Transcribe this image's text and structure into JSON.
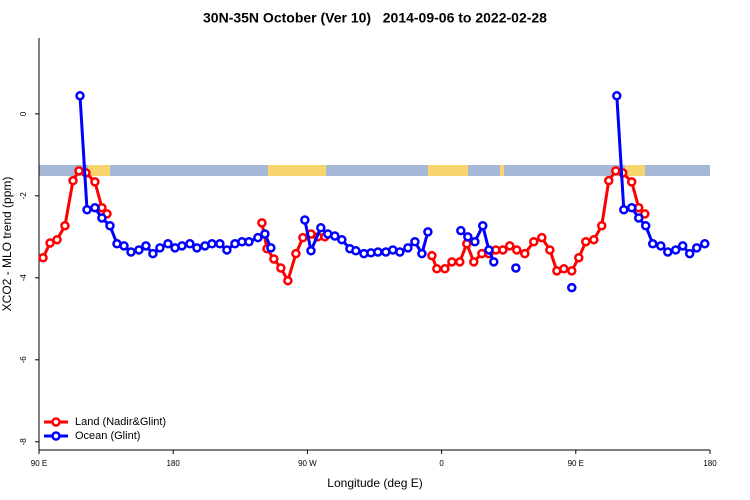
{
  "chart_data": {
    "type": "line",
    "title": "30N-35N October (Ver 10)   2014-09-06 to 2022-02-28",
    "x_label": "Longitude (deg E)",
    "y_label": "XCO2 - MLO trend (ppm)",
    "xlim": [
      90,
      540
    ],
    "ylim": [
      -8.2,
      1.85
    ],
    "xticks": [
      {
        "value": 90,
        "label": "90 E"
      },
      {
        "value": 180,
        "label": "180"
      },
      {
        "value": 270,
        "label": "90 W"
      },
      {
        "value": 360,
        "label": "0"
      },
      {
        "value": 450,
        "label": "90 E"
      },
      {
        "value": 540,
        "label": "180"
      }
    ],
    "yticks": [
      0,
      -2,
      -4,
      -6,
      -8
    ],
    "legend": "bottom-left",
    "series": [
      {
        "name": "Land (Nadir&Glint)",
        "color": "#ff0000",
        "x": [
          92.7,
          97.4,
          102.1,
          107.4,
          112.8,
          116.8,
          121.5,
          127.5,
          132.2,
          135.6,
          null,
          239.5,
          242.9,
          247.5,
          252.2,
          256.9,
          262.3,
          267.0,
          272.4,
          277.0,
          281.7,
          null,
          353.5,
          356.8,
          362.2,
          366.9,
          372.2,
          376.9,
          381.6,
          387.0,
          391.7,
          396.4,
          401.1,
          405.7,
          410.4,
          415.8,
          421.8,
          427.2,
          432.6,
          437.3,
          442.0,
          447.3,
          452.0,
          456.7,
          462.1,
          467.4,
          472.1,
          476.8,
          481.5,
          487.5,
          492.2,
          496.3
        ],
        "values": [
          -3.51,
          -3.15,
          -3.07,
          -2.73,
          -1.63,
          -1.39,
          -1.44,
          -1.66,
          -2.29,
          -2.44,
          null,
          -2.66,
          -3.29,
          -3.54,
          -3.76,
          -4.07,
          -3.41,
          -3.02,
          -2.93,
          -3.0,
          -3.0,
          null,
          -3.46,
          -3.78,
          -3.78,
          -3.61,
          -3.61,
          -3.17,
          -3.61,
          -3.41,
          -3.41,
          -3.32,
          -3.32,
          -3.22,
          -3.32,
          -3.41,
          -3.12,
          -3.02,
          -3.32,
          -3.83,
          -3.78,
          -3.83,
          -3.51,
          -3.12,
          -3.07,
          -2.73,
          -1.63,
          -1.39,
          -1.44,
          -1.66,
          -2.29,
          -2.44
        ]
      },
      {
        "name": "Ocean (Glint)",
        "color": "#0000ff",
        "x": [
          117.5,
          122.2,
          127.5,
          132.2,
          137.6,
          142.3,
          147.0,
          151.7,
          157.0,
          161.7,
          166.4,
          171.1,
          176.5,
          181.2,
          185.9,
          191.2,
          195.9,
          201.3,
          206.0,
          211.3,
          216.0,
          221.4,
          226.1,
          230.8,
          236.8,
          241.5,
          245.5,
          null,
          268.3,
          272.4,
          279.0,
          283.7,
          288.4,
          293.1,
          298.5,
          302.5,
          307.9,
          312.6,
          317.3,
          322.6,
          327.3,
          332.0,
          337.4,
          342.1,
          346.8,
          350.8,
          null,
          372.9,
          377.6,
          382.3,
          387.6,
          391.7,
          395.0,
          null,
          409.8,
          null,
          447.3,
          null,
          477.5,
          482.2,
          487.5,
          492.2,
          496.9,
          501.6,
          507.0,
          511.7,
          517.0,
          521.7,
          526.4,
          531.1,
          536.5
        ],
        "values": [
          0.44,
          -2.34,
          -2.29,
          -2.54,
          -2.73,
          -3.17,
          -3.22,
          -3.37,
          -3.32,
          -3.22,
          -3.41,
          -3.27,
          -3.17,
          -3.27,
          -3.22,
          -3.17,
          -3.27,
          -3.22,
          -3.17,
          -3.17,
          -3.32,
          -3.17,
          -3.12,
          -3.12,
          -3.02,
          -2.93,
          -3.27,
          null,
          -2.59,
          -3.34,
          -2.78,
          -2.93,
          -2.98,
          -3.07,
          -3.29,
          -3.34,
          -3.41,
          -3.39,
          -3.37,
          -3.37,
          -3.32,
          -3.37,
          -3.27,
          -3.12,
          -3.41,
          -2.88,
          null,
          -2.85,
          -3.0,
          -3.12,
          -2.73,
          -3.32,
          -3.61,
          null,
          -3.76,
          null,
          -4.24,
          null,
          0.44,
          -2.34,
          -2.29,
          -2.54,
          -2.73,
          -3.17,
          -3.22,
          -3.37,
          -3.32,
          -3.22,
          -3.41,
          -3.27,
          -3.17
        ]
      }
    ]
  }
}
